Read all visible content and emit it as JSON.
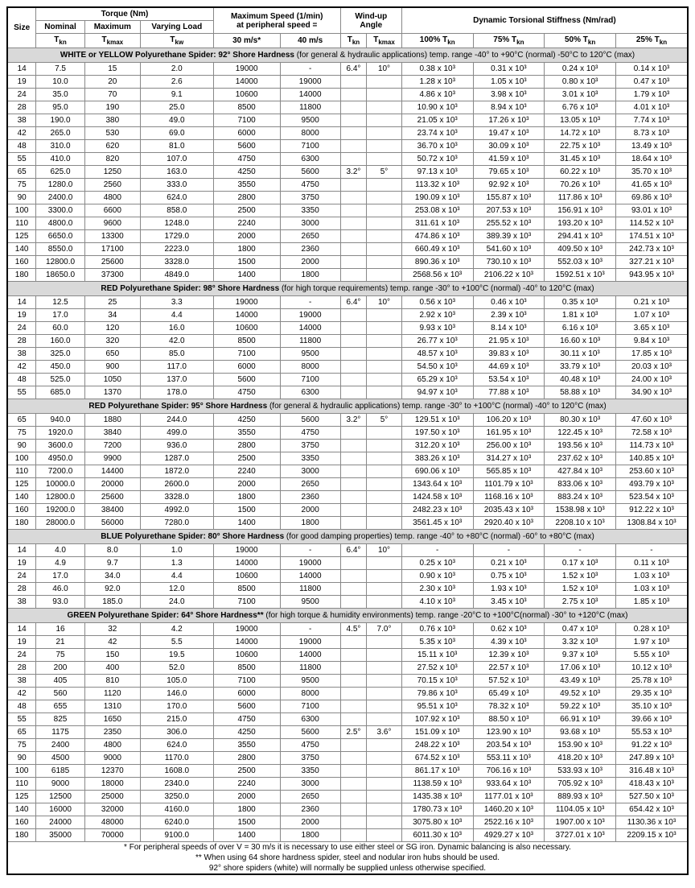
{
  "headers": {
    "size": "Size",
    "torque_group": "Torque (Nm)",
    "nominal": "Nominal",
    "maximum": "Maximum",
    "varying": "Varying Load",
    "tkn": "T",
    "tkn_sub": "kn",
    "tkmax": "T",
    "tkmax_sub": "kmax",
    "tkw": "T",
    "tkw_sub": "kw",
    "maxspeed_group1": "Maximum Speed (1/min)",
    "maxspeed_group2": "at peripheral speed =",
    "speed30": "30 m/s*",
    "speed40": "40 m/s",
    "windup_group": "Wind-up",
    "windup_group2": "Angle",
    "stiffness_group": "Dynamic Torsional Stiffness (Nm/rad)",
    "s100": "100% T",
    "s75": "75% T",
    "s50": "50% T",
    "s25": "25% T"
  },
  "sections": [
    {
      "title_bold": "WHITE or YELLOW Polyurethane Spider: 92° Shore Hardness",
      "title_norm": " (for general & hydraulic applications) temp. range -40° to +90°C (normal) -50°C to 120°C (max)",
      "rows": [
        [
          "14",
          "7.5",
          "15",
          "2.0",
          "19000",
          "-",
          "6.4°",
          "10°",
          "0.38 x 10³",
          "0.31 x 10³",
          "0.24 x 10³",
          "0.14 x 10³"
        ],
        [
          "19",
          "10.0",
          "20",
          "2.6",
          "14000",
          "19000",
          "",
          "",
          "1.28 x 10³",
          "1.05 x 10³",
          "0.80 x 10³",
          "0.47 x 10³"
        ],
        [
          "24",
          "35.0",
          "70",
          "9.1",
          "10600",
          "14000",
          "",
          "",
          "4.86 x 10³",
          "3.98 x 10³",
          "3.01 x 10³",
          "1.79 x 10³"
        ],
        [
          "28",
          "95.0",
          "190",
          "25.0",
          "8500",
          "11800",
          "",
          "",
          "10.90 x 10³",
          "8.94 x 10³",
          "6.76 x 10³",
          "4.01 x 10³"
        ],
        [
          "38",
          "190.0",
          "380",
          "49.0",
          "7100",
          "9500",
          "",
          "",
          "21.05 x 10³",
          "17.26 x 10³",
          "13.05 x 10³",
          "7.74 x 10³"
        ],
        [
          "42",
          "265.0",
          "530",
          "69.0",
          "6000",
          "8000",
          "",
          "",
          "23.74 x 10³",
          "19.47 x 10³",
          "14.72 x 10³",
          "8.73 x 10³"
        ],
        [
          "48",
          "310.0",
          "620",
          "81.0",
          "5600",
          "7100",
          "",
          "",
          "36.70 x 10³",
          "30.09 x 10³",
          "22.75 x 10³",
          "13.49 x 10³"
        ],
        [
          "55",
          "410.0",
          "820",
          "107.0",
          "4750",
          "6300",
          "",
          "",
          "50.72 x 10³",
          "41.59 x 10³",
          "31.45 x 10³",
          "18.64 x 10³"
        ],
        [
          "65",
          "625.0",
          "1250",
          "163.0",
          "4250",
          "5600",
          "3.2°",
          "5°",
          "97.13 x 10³",
          "79.65 x 10³",
          "60.22 x 10³",
          "35.70 x 10³"
        ],
        [
          "75",
          "1280.0",
          "2560",
          "333.0",
          "3550",
          "4750",
          "",
          "",
          "113.32 x 10³",
          "92.92 x 10³",
          "70.26 x 10³",
          "41.65 x 10³"
        ],
        [
          "90",
          "2400.0",
          "4800",
          "624.0",
          "2800",
          "3750",
          "",
          "",
          "190.09 x 10³",
          "155.87 x 10³",
          "117.86 x 10³",
          "69.86 x 10³"
        ],
        [
          "100",
          "3300.0",
          "6600",
          "858.0",
          "2500",
          "3350",
          "",
          "",
          "253.08 x 10³",
          "207.53 x 10³",
          "156.91 x 10³",
          "93.01 x 10³"
        ],
        [
          "110",
          "4800.0",
          "9600",
          "1248.0",
          "2240",
          "3000",
          "",
          "",
          "311.61 x 10³",
          "255.52 x 10³",
          "193.20 x 10³",
          "114.52 x 10³"
        ],
        [
          "125",
          "6650.0",
          "13300",
          "1729.0",
          "2000",
          "2650",
          "",
          "",
          "474.86 x 10³",
          "389.39 x 10³",
          "294.41 x 10³",
          "174.51 x 10³"
        ],
        [
          "140",
          "8550.0",
          "17100",
          "2223.0",
          "1800",
          "2360",
          "",
          "",
          "660.49 x 10³",
          "541.60 x 10³",
          "409.50 x 10³",
          "242.73 x 10³"
        ],
        [
          "160",
          "12800.0",
          "25600",
          "3328.0",
          "1500",
          "2000",
          "",
          "",
          "890.36 x 10³",
          "730.10 x 10³",
          "552.03 x 10³",
          "327.21 x 10³"
        ],
        [
          "180",
          "18650.0",
          "37300",
          "4849.0",
          "1400",
          "1800",
          "",
          "",
          "2568.56 x 10³",
          "2106.22 x 10³",
          "1592.51 x 10³",
          "943.95 x 10³"
        ]
      ]
    },
    {
      "title_bold": "RED Polyurethane Spider: 98° Shore Hardness",
      "title_norm": " (for high torque requirements) temp. range -30° to +100°C (normal) -40° to 120°C (max)",
      "rows": [
        [
          "14",
          "12.5",
          "25",
          "3.3",
          "19000",
          "-",
          "6.4°",
          "10°",
          "0.56 x 10³",
          "0.46 x 10³",
          "0.35 x 10³",
          "0.21 x 10³"
        ],
        [
          "19",
          "17.0",
          "34",
          "4.4",
          "14000",
          "19000",
          "",
          "",
          "2.92 x 10³",
          "2.39 x 10³",
          "1.81 x 10³",
          "1.07 x 10³"
        ],
        [
          "24",
          "60.0",
          "120",
          "16.0",
          "10600",
          "14000",
          "",
          "",
          "9.93 x 10³",
          "8.14 x 10³",
          "6.16 x 10³",
          "3.65 x 10³"
        ],
        [
          "28",
          "160.0",
          "320",
          "42.0",
          "8500",
          "11800",
          "",
          "",
          "26.77 x 10³",
          "21.95 x 10³",
          "16.60 x 10³",
          "9.84 x 10³"
        ],
        [
          "38",
          "325.0",
          "650",
          "85.0",
          "7100",
          "9500",
          "",
          "",
          "48.57 x 10³",
          "39.83 x 10³",
          "30.11 x 10³",
          "17.85 x 10³"
        ],
        [
          "42",
          "450.0",
          "900",
          "117.0",
          "6000",
          "8000",
          "",
          "",
          "54.50 x 10³",
          "44.69 x 10³",
          "33.79 x 10³",
          "20.03 x 10³"
        ],
        [
          "48",
          "525.0",
          "1050",
          "137.0",
          "5600",
          "7100",
          "",
          "",
          "65.29 x 10³",
          "53.54 x 10³",
          "40.48 x 10³",
          "24.00 x 10³"
        ],
        [
          "55",
          "685.0",
          "1370",
          "178.0",
          "4750",
          "6300",
          "",
          "",
          "94.97 x 10³",
          "77.88 x 10³",
          "58.88 x 10³",
          "34.90 x 10³"
        ]
      ]
    },
    {
      "title_bold": "RED Polyurethane Spider: 95° Shore Hardness",
      "title_norm": " (for general & hydraulic applications) temp. range -30° to +100°C (normal) -40° to 120°C (max)",
      "rows": [
        [
          "65",
          "940.0",
          "1880",
          "244.0",
          "4250",
          "5600",
          "3.2°",
          "5°",
          "129.51 x 10³",
          "106.20 x 10³",
          "80.30 x 10³",
          "47.60 x 10³"
        ],
        [
          "75",
          "1920.0",
          "3840",
          "499.0",
          "3550",
          "4750",
          "",
          "",
          "197.50 x 10³",
          "161.95 x 10³",
          "122.45 x 10³",
          "72.58 x 10³"
        ],
        [
          "90",
          "3600.0",
          "7200",
          "936.0",
          "2800",
          "3750",
          "",
          "",
          "312.20 x 10³",
          "256.00 x 10³",
          "193.56 x 10³",
          "114.73 x 10³"
        ],
        [
          "100",
          "4950.0",
          "9900",
          "1287.0",
          "2500",
          "3350",
          "",
          "",
          "383.26 x 10³",
          "314.27 x 10³",
          "237.62 x 10³",
          "140.85 x 10³"
        ],
        [
          "110",
          "7200.0",
          "14400",
          "1872.0",
          "2240",
          "3000",
          "",
          "",
          "690.06 x 10³",
          "565.85 x 10³",
          "427.84 x 10³",
          "253.60 x 10³"
        ],
        [
          "125",
          "10000.0",
          "20000",
          "2600.0",
          "2000",
          "2650",
          "",
          "",
          "1343.64 x 10³",
          "1101.79 x 10³",
          "833.06 x 10³",
          "493.79 x 10³"
        ],
        [
          "140",
          "12800.0",
          "25600",
          "3328.0",
          "1800",
          "2360",
          "",
          "",
          "1424.58 x 10³",
          "1168.16 x 10³",
          "883.24 x 10³",
          "523.54 x 10³"
        ],
        [
          "160",
          "19200.0",
          "38400",
          "4992.0",
          "1500",
          "2000",
          "",
          "",
          "2482.23 x 10³",
          "2035.43 x 10³",
          "1538.98 x 10³",
          "912.22 x 10³"
        ],
        [
          "180",
          "28000.0",
          "56000",
          "7280.0",
          "1400",
          "1800",
          "",
          "",
          "3561.45 x 10³",
          "2920.40 x 10³",
          "2208.10 x 10³",
          "1308.84 x 10³"
        ]
      ]
    },
    {
      "title_bold": "BLUE Polyurethane Spider: 80° Shore Hardness",
      "title_norm": " (for good damping properties) temp. range -40° to +80°C (normal) -60° to +80°C (max)",
      "rows": [
        [
          "14",
          "4.0",
          "8.0",
          "1.0",
          "19000",
          "-",
          "6.4°",
          "10°",
          "-",
          "-",
          "-",
          "-"
        ],
        [
          "19",
          "4.9",
          "9.7",
          "1.3",
          "14000",
          "19000",
          "",
          "",
          "0.25 x 10³",
          "0.21 x 10³",
          "0.17 x 10³",
          "0.11 x 10³"
        ],
        [
          "24",
          "17.0",
          "34.0",
          "4.4",
          "10600",
          "14000",
          "",
          "",
          "0.90 x 10³",
          "0.75 x 10³",
          "1.52 x 10³",
          "1.03 x 10³"
        ],
        [
          "28",
          "46.0",
          "92.0",
          "12.0",
          "8500",
          "11800",
          "",
          "",
          "2.30 x 10³",
          "1.93 x 10³",
          "1.52 x 10³",
          "1.03 x 10³"
        ],
        [
          "38",
          "93.0",
          "185.0",
          "24.0",
          "7100",
          "9500",
          "",
          "",
          "4.10 x 10³",
          "3.45 x 10³",
          "2.75 x 10³",
          "1.85 x 10³"
        ]
      ]
    },
    {
      "title_bold": "GREEN Polyurethane Spider: 64° Shore Hardness**",
      "title_norm": " (for high torque & humidity environments) temp. range -20°C to +100°C(normal) -30° to +120°C (max)",
      "rows": [
        [
          "14",
          "16",
          "32",
          "4.2",
          "19000",
          "-",
          "4.5°",
          "7.0°",
          "0.76 x 10³",
          "0.62 x 10³",
          "0.47 x 10³",
          "0.28 x 10³"
        ],
        [
          "19",
          "21",
          "42",
          "5.5",
          "14000",
          "19000",
          "",
          "",
          "5.35 x 10³",
          "4.39 x 10³",
          "3.32 x 10³",
          "1.97 x 10³"
        ],
        [
          "24",
          "75",
          "150",
          "19.5",
          "10600",
          "14000",
          "",
          "",
          "15.11 x 10³",
          "12.39 x 10³",
          "9.37 x 10³",
          "5.55 x 10³"
        ],
        [
          "28",
          "200",
          "400",
          "52.0",
          "8500",
          "11800",
          "",
          "",
          "27.52 x 10³",
          "22.57 x 10³",
          "17.06 x 10³",
          "10.12 x 10³"
        ],
        [
          "38",
          "405",
          "810",
          "105.0",
          "7100",
          "9500",
          "",
          "",
          "70.15 x 10³",
          "57.52 x 10³",
          "43.49 x 10³",
          "25.78 x 10³"
        ],
        [
          "42",
          "560",
          "1120",
          "146.0",
          "6000",
          "8000",
          "",
          "",
          "79.86 x 10³",
          "65.49 x 10³",
          "49.52 x 10³",
          "29.35 x 10³"
        ],
        [
          "48",
          "655",
          "1310",
          "170.0",
          "5600",
          "7100",
          "",
          "",
          "95.51 x 10³",
          "78.32 x 10³",
          "59.22 x 10³",
          "35.10 x 10³"
        ],
        [
          "55",
          "825",
          "1650",
          "215.0",
          "4750",
          "6300",
          "",
          "",
          "107.92 x 10³",
          "88.50 x 10³",
          "66.91 x 10³",
          "39.66 x 10³"
        ],
        [
          "65",
          "1175",
          "2350",
          "306.0",
          "4250",
          "5600",
          "2.5°",
          "3.6°",
          "151.09 x 10³",
          "123.90 x 10³",
          "93.68 x 10³",
          "55.53 x 10³"
        ],
        [
          "75",
          "2400",
          "4800",
          "624.0",
          "3550",
          "4750",
          "",
          "",
          "248.22 x 10³",
          "203.54 x 10³",
          "153.90 x 10³",
          "91.22 x 10³"
        ],
        [
          "90",
          "4500",
          "9000",
          "1170.0",
          "2800",
          "3750",
          "",
          "",
          "674.52 x 10³",
          "553.11 x 10³",
          "418.20 x 10³",
          "247.89 x 10³"
        ],
        [
          "100",
          "6185",
          "12370",
          "1608.0",
          "2500",
          "3350",
          "",
          "",
          "861.17 x 10³",
          "706.16 x 10³",
          "533.93 x 10³",
          "316.48 x 10³"
        ],
        [
          "110",
          "9000",
          "18000",
          "2340.0",
          "2240",
          "3000",
          "",
          "",
          "1138.59 x 10³",
          "933.64 x 10³",
          "705.92 x 10³",
          "418.43 x 10³"
        ],
        [
          "125",
          "12500",
          "25000",
          "3250.0",
          "2000",
          "2650",
          "",
          "",
          "1435.38 x 10³",
          "1177.01 x 10³",
          "889.93 x 10³",
          "527.50 x 10³"
        ],
        [
          "140",
          "16000",
          "32000",
          "4160.0",
          "1800",
          "2360",
          "",
          "",
          "1780.73 x 10³",
          "1460.20 x 10³",
          "1104.05 x 10³",
          "654.42 x 10³"
        ],
        [
          "160",
          "24000",
          "48000",
          "6240.0",
          "1500",
          "2000",
          "",
          "",
          "3075.80 x 10³",
          "2522.16 x 10³",
          "1907.00 x 10³",
          "1130.36 x 10³"
        ],
        [
          "180",
          "35000",
          "70000",
          "9100.0",
          "1400",
          "1800",
          "",
          "",
          "6011.30 x 10³",
          "4929.27 x 10³",
          "3727.01 x 10³",
          "2209.15 x 10³"
        ]
      ]
    }
  ],
  "footnotes": {
    "f1": "* For peripheral speeds of over V = 30 m/s it is necessary to use either steel or SG iron. Dynamic balancing is also necessary.",
    "f2": "** When using 64 shore hardness spider, steel and nodular iron hubs should be used.",
    "f3": "92° shore spiders (white) will normally be supplied unless otherwise specified."
  }
}
